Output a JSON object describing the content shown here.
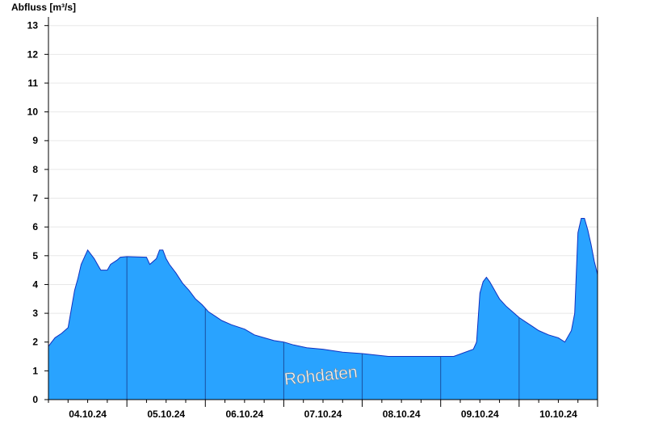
{
  "chart_data": {
    "type": "area",
    "ylabel": "Abfluss [m³/s]",
    "xlabel": "",
    "watermark": "Rohdaten",
    "ylim": [
      0,
      13.3
    ],
    "yticks": [
      0,
      1,
      2,
      3,
      4,
      5,
      6,
      7,
      8,
      9,
      10,
      11,
      12,
      13
    ],
    "xlim": [
      "2024-10-03T12:00",
      "2024-10-10T12:00"
    ],
    "day_boundaries": [
      "2024-10-04T12:00",
      "2024-10-05T12:00",
      "2024-10-06T12:00",
      "2024-10-07T12:00",
      "2024-10-08T12:00",
      "2024-10-09T12:00",
      "2024-10-10T12:00"
    ],
    "x_tick_labels": [
      "04.10.24",
      "05.10.24",
      "06.10.24",
      "07.10.24",
      "08.10.24",
      "09.10.24",
      "10.10.24"
    ],
    "grid": true,
    "fill_color": "#29a3ff",
    "line_color": "#1030c0",
    "series": [
      {
        "x": [
          "2024-10-03T12:00",
          "2024-10-03T13:00",
          "2024-10-03T14:00",
          "2024-10-03T16:00",
          "2024-10-03T18:00",
          "2024-10-03T20:00",
          "2024-10-03T21:00",
          "2024-10-03T22:00",
          "2024-10-04T00:00",
          "2024-10-04T02:00",
          "2024-10-04T03:00",
          "2024-10-04T04:00",
          "2024-10-04T06:00",
          "2024-10-04T07:00",
          "2024-10-04T09:00",
          "2024-10-04T10:00",
          "2024-10-04T12:00",
          "2024-10-04T18:00",
          "2024-10-04T19:00",
          "2024-10-04T21:00",
          "2024-10-04T22:00",
          "2024-10-04T23:00",
          "2024-10-05T00:00",
          "2024-10-05T01:00",
          "2024-10-05T03:00",
          "2024-10-05T05:00",
          "2024-10-05T07:00",
          "2024-10-05T09:00",
          "2024-10-05T11:00",
          "2024-10-05T13:00",
          "2024-10-05T15:00",
          "2024-10-05T17:00",
          "2024-10-05T20:00",
          "2024-10-06T00:00",
          "2024-10-06T03:00",
          "2024-10-06T06:00",
          "2024-10-06T09:00",
          "2024-10-06T12:00",
          "2024-10-06T15:00",
          "2024-10-06T19:00",
          "2024-10-07T00:00",
          "2024-10-07T06:00",
          "2024-10-07T12:00",
          "2024-10-07T20:00",
          "2024-10-08T06:00",
          "2024-10-08T16:00",
          "2024-10-08T22:00",
          "2024-10-08T23:00",
          "2024-10-09T00:00",
          "2024-10-09T01:00",
          "2024-10-09T02:00",
          "2024-10-09T03:00",
          "2024-10-09T04:00",
          "2024-10-09T05:00",
          "2024-10-09T06:00",
          "2024-10-09T08:00",
          "2024-10-09T10:00",
          "2024-10-09T12:00",
          "2024-10-09T14:00",
          "2024-10-09T16:00",
          "2024-10-09T18:00",
          "2024-10-09T21:00",
          "2024-10-10T00:00",
          "2024-10-10T02:00",
          "2024-10-10T04:00",
          "2024-10-10T05:00",
          "2024-10-10T06:00",
          "2024-10-10T07:00",
          "2024-10-10T08:00",
          "2024-10-10T09:00",
          "2024-10-10T10:00",
          "2024-10-10T11:00",
          "2024-10-10T12:00"
        ],
        "y": [
          1.85,
          2.0,
          2.15,
          2.3,
          2.5,
          3.8,
          4.2,
          4.7,
          5.2,
          4.9,
          4.7,
          4.5,
          4.5,
          4.7,
          4.85,
          4.95,
          4.97,
          4.95,
          4.7,
          4.9,
          5.2,
          5.2,
          4.9,
          4.7,
          4.4,
          4.05,
          3.8,
          3.5,
          3.3,
          3.05,
          2.9,
          2.75,
          2.6,
          2.45,
          2.25,
          2.15,
          2.05,
          2.0,
          1.9,
          1.8,
          1.75,
          1.65,
          1.6,
          1.5,
          1.5,
          1.5,
          1.75,
          2.0,
          3.7,
          4.1,
          4.25,
          4.1,
          3.9,
          3.7,
          3.5,
          3.25,
          3.05,
          2.85,
          2.7,
          2.55,
          2.4,
          2.25,
          2.15,
          2.0,
          2.4,
          3.0,
          5.8,
          6.3,
          6.3,
          5.9,
          5.4,
          4.8,
          4.35
        ]
      }
    ]
  }
}
